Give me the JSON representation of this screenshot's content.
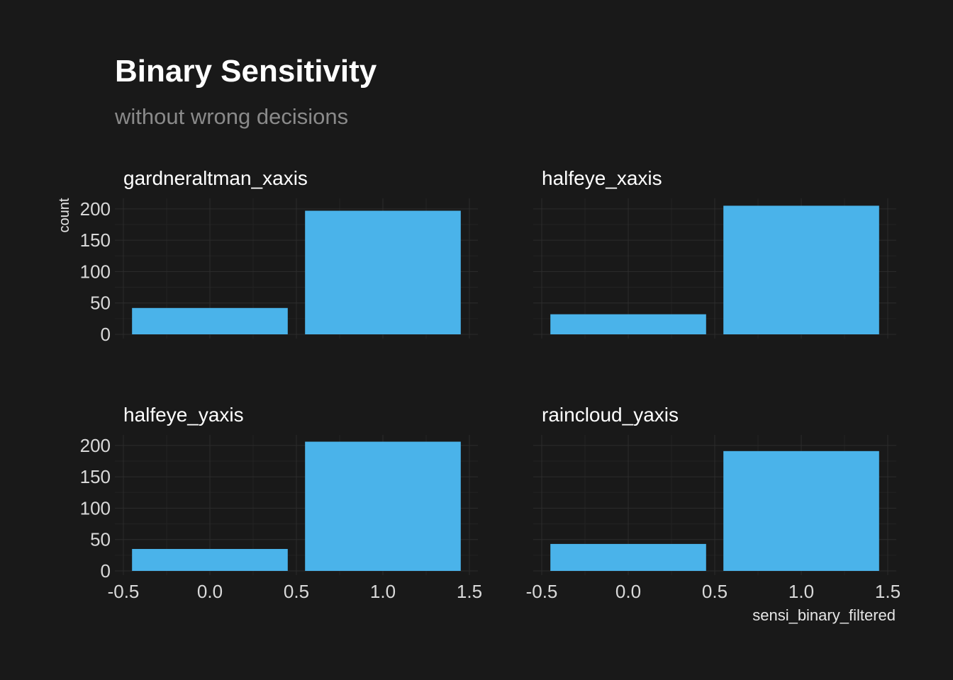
{
  "chart_data": {
    "type": "bar",
    "title": "Binary Sensitivity",
    "subtitle": "without wrong decisions",
    "xlabel": "sensi_binary_filtered",
    "ylabel": "count",
    "xlim": [
      -0.5,
      1.5
    ],
    "ylim": [
      0,
      210
    ],
    "x_ticks": [
      "-0.5",
      "0.0",
      "0.5",
      "1.0",
      "1.5"
    ],
    "y_ticks": [
      "0",
      "50",
      "100",
      "150",
      "200"
    ],
    "grid": true,
    "bar_color": "#4ab3ea",
    "background": "#191919",
    "facets": [
      {
        "name": "gardneraltman_xaxis",
        "x": [
          0,
          1
        ],
        "values": [
          42,
          197
        ]
      },
      {
        "name": "halfeye_xaxis",
        "x": [
          0,
          1
        ],
        "values": [
          32,
          205
        ]
      },
      {
        "name": "halfeye_yaxis",
        "x": [
          0,
          1
        ],
        "values": [
          35,
          206
        ]
      },
      {
        "name": "raincloud_yaxis",
        "x": [
          0,
          1
        ],
        "values": [
          43,
          191
        ]
      }
    ]
  }
}
